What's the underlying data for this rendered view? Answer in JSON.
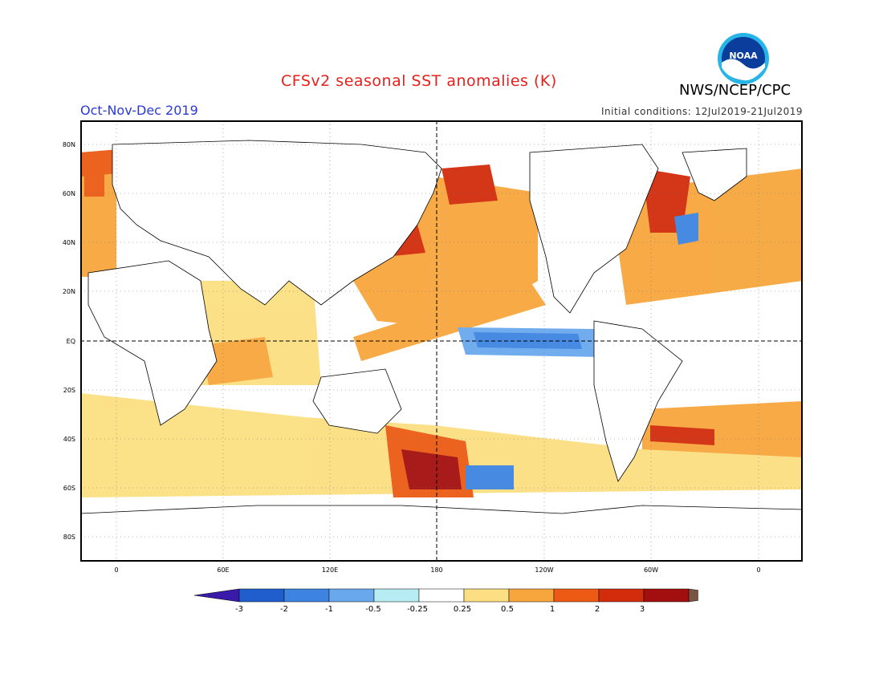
{
  "header": {
    "title": "CFSv2 seasonal SST anomalies (K)",
    "period": "Oct-Nov-Dec 2019",
    "initial_conditions": "Initial conditions: 12Jul2019-21Jul2019",
    "agency": "NWS/NCEP/CPC",
    "logo_text": "NOAA"
  },
  "map": {
    "lat_labels": [
      "80N",
      "60N",
      "40N",
      "20N",
      "EQ",
      "20S",
      "40S",
      "60S",
      "80S"
    ],
    "lon_labels": [
      "0",
      "60E",
      "120E",
      "180",
      "120W",
      "60W",
      "0"
    ]
  },
  "colorbar": {
    "ticks": [
      "-3",
      "-2",
      "-1",
      "-0.5",
      "-0.25",
      "0.25",
      "0.5",
      "1",
      "2",
      "3"
    ],
    "colors": [
      "#3a1aa8",
      "#1f5ecc",
      "#3d84e0",
      "#6aa8ee",
      "#b7ecf2",
      "#ffffff",
      "#fbdf82",
      "#f7a63d",
      "#ec5a14",
      "#d22c0c",
      "#a30f0f",
      "#7a5545"
    ]
  },
  "colors": {
    "title": "#e8201c",
    "period": "#2a3ad6",
    "logo": "#0a5bbd"
  }
}
